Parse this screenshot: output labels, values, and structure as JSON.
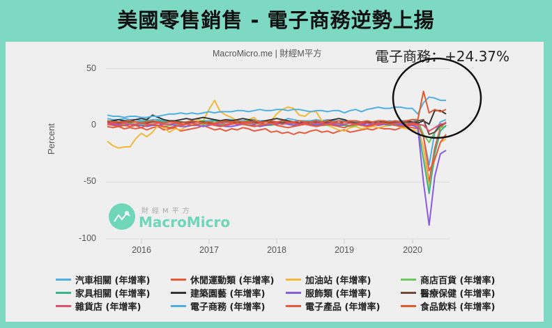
{
  "header": {
    "title": "美國零售銷售 - 電子商務逆勢上揚"
  },
  "chart_header": {
    "credit": "MacroMicro.me | 財經M平方",
    "highlight": "電子商務：+24.37%"
  },
  "logo": {
    "cn": "財經M平方",
    "en": "MacroMicro"
  },
  "axes": {
    "ylabel": "Percent",
    "yticks": [
      "50",
      "0",
      "-50",
      "-100"
    ],
    "xticks": [
      "2016",
      "2017",
      "2018",
      "2019",
      "2020"
    ]
  },
  "legend": [
    {
      "label": "汽車相關 (年增率)",
      "color": "#4fb0e0"
    },
    {
      "label": "休閒運動類 (年增率)",
      "color": "#e8583a"
    },
    {
      "label": "加油站 (年增率)",
      "color": "#f0b93a"
    },
    {
      "label": "商店百貨 (年增率)",
      "color": "#6cc85e"
    },
    {
      "label": "家具相關 (年增率)",
      "color": "#3ab58a"
    },
    {
      "label": "建築園藝 (年增率)",
      "color": "#333333"
    },
    {
      "label": "服飾類 (年增率)",
      "color": "#8a5ae0"
    },
    {
      "label": "醫療保健 (年增率)",
      "color": "#6b4a3a"
    },
    {
      "label": "雜貨店 (年增率)",
      "color": "#e0506e"
    },
    {
      "label": "電子商務 (年增率)",
      "color": "#4fb0e0"
    },
    {
      "label": "電子產品 (年增率)",
      "color": "#e8583a"
    },
    {
      "label": "食品飲料 (年增率)",
      "color": "#e05a30"
    }
  ],
  "chart_data": {
    "type": "line",
    "title": "美國零售銷售 - 電子商務逆勢上揚",
    "xlabel": "",
    "ylabel": "Percent",
    "ylim": [
      -100,
      55
    ],
    "x_start": "2015-07",
    "x_end": "2020-07",
    "frequency": "monthly",
    "xticks": [
      "2016",
      "2017",
      "2018",
      "2019",
      "2020"
    ],
    "yticks": [
      50,
      0,
      -50,
      -100
    ],
    "grid": true,
    "legend_position": "bottom",
    "annotation": "電子商務：+24.37%",
    "series": [
      {
        "name": "汽車相關 (年增率)",
        "color": "#4fb0e0",
        "values": [
          6,
          5,
          5,
          6,
          5,
          5,
          4,
          4,
          5,
          5,
          4,
          4,
          4,
          3,
          3,
          4,
          3,
          4,
          4,
          5,
          4,
          5,
          5,
          4,
          4,
          5,
          5,
          4,
          4,
          4,
          3,
          4,
          6,
          5,
          4,
          4,
          4,
          5,
          4,
          5,
          4,
          4,
          4,
          4,
          3,
          2,
          3,
          2,
          3,
          3,
          4,
          3,
          4,
          4,
          5,
          3,
          -10,
          -35,
          -6,
          3,
          5
        ]
      },
      {
        "name": "休閒運動類 (年增率)",
        "color": "#e8583a",
        "values": [
          -1,
          -2,
          -1,
          -3,
          -2,
          -3,
          -2,
          -4,
          -2,
          -1,
          -4,
          -3,
          -2,
          -5,
          -4,
          -3,
          -2,
          0,
          -2,
          -4,
          -3,
          -5,
          -3,
          -4,
          -2,
          -3,
          -5,
          -4,
          -3,
          -6,
          -5,
          -7,
          -6,
          -8,
          -6,
          -7,
          -5,
          -4,
          -6,
          -5,
          -7,
          -5,
          -4,
          -6,
          -5,
          -4,
          -3,
          -4,
          -2,
          -3,
          -3,
          -4,
          -2,
          -1,
          -2,
          -3,
          -20,
          -50,
          -20,
          -2,
          3
        ]
      },
      {
        "name": "加油站 (年增率)",
        "color": "#f0b93a",
        "values": [
          -14,
          -18,
          -20,
          -19,
          -19,
          -12,
          -7,
          -10,
          -6,
          0,
          -2,
          -6,
          -3,
          -4,
          -1,
          0,
          5,
          4,
          14,
          22,
          12,
          9,
          7,
          4,
          3,
          5,
          7,
          2,
          0,
          4,
          10,
          14,
          16,
          15,
          9,
          8,
          12,
          12,
          4,
          0,
          -2,
          -4,
          -5,
          -2,
          -1,
          -3,
          -2,
          -1,
          -2,
          -1,
          0,
          1,
          -2,
          -3,
          -4,
          -5,
          -20,
          -55,
          -30,
          -15,
          -12
        ]
      },
      {
        "name": "商店百貨 (年增率)",
        "color": "#6cc85e",
        "values": [
          2,
          2,
          1,
          1,
          2,
          1,
          1,
          0,
          1,
          0,
          -1,
          0,
          1,
          0,
          1,
          2,
          1,
          1,
          1,
          2,
          1,
          0,
          1,
          2,
          1,
          1,
          2,
          1,
          0,
          0,
          1,
          2,
          1,
          1,
          2,
          2,
          1,
          1,
          0,
          0,
          1,
          1,
          0,
          -1,
          0,
          1,
          0,
          1,
          0,
          1,
          0,
          1,
          1,
          2,
          1,
          4,
          -8,
          -15,
          -6,
          -2,
          -1
        ]
      },
      {
        "name": "家具相關 (年增率)",
        "color": "#3ab58a",
        "values": [
          4,
          4,
          3,
          4,
          4,
          3,
          3,
          4,
          3,
          4,
          3,
          3,
          4,
          3,
          3,
          4,
          3,
          4,
          3,
          4,
          3,
          3,
          4,
          3,
          3,
          4,
          4,
          3,
          3,
          3,
          2,
          3,
          3,
          2,
          2,
          3,
          2,
          1,
          1,
          1,
          0,
          0,
          0,
          0,
          1,
          0,
          0,
          1,
          1,
          1,
          0,
          1,
          0,
          1,
          1,
          -2,
          -30,
          -60,
          -25,
          -5,
          0
        ]
      },
      {
        "name": "建築園藝 (年增率)",
        "color": "#333333",
        "values": [
          3,
          4,
          5,
          4,
          4,
          5,
          6,
          5,
          9,
          7,
          5,
          4,
          4,
          5,
          6,
          5,
          6,
          7,
          6,
          5,
          4,
          5,
          4,
          5,
          6,
          5,
          4,
          3,
          4,
          5,
          6,
          5,
          4,
          3,
          2,
          3,
          1,
          2,
          3,
          4,
          5,
          6,
          5,
          3,
          2,
          1,
          2,
          3,
          4,
          3,
          1,
          2,
          3,
          4,
          3,
          2,
          4,
          1,
          13,
          13,
          10
        ]
      },
      {
        "name": "服飾類 (年增率)",
        "color": "#8a5ae0",
        "values": [
          1,
          1,
          0,
          0,
          1,
          0,
          0,
          -1,
          0,
          0,
          1,
          1,
          0,
          -1,
          -1,
          0,
          0,
          -1,
          0,
          1,
          0,
          -1,
          -1,
          0,
          1,
          0,
          0,
          -1,
          0,
          1,
          1,
          2,
          1,
          0,
          1,
          2,
          1,
          0,
          1,
          2,
          1,
          0,
          1,
          2,
          1,
          1,
          0,
          1,
          0,
          1,
          1,
          0,
          1,
          0,
          0,
          -2,
          -50,
          -88,
          -45,
          -25,
          -22
        ]
      },
      {
        "name": "醫療保健 (年增率)",
        "color": "#6b4a3a",
        "values": [
          3,
          3,
          2,
          3,
          3,
          3,
          2,
          2,
          3,
          3,
          2,
          3,
          3,
          3,
          2,
          3,
          3,
          3,
          2,
          2,
          3,
          3,
          3,
          2,
          3,
          3,
          3,
          2,
          3,
          3,
          3,
          2,
          3,
          3,
          2,
          3,
          3,
          3,
          2,
          3,
          3,
          2,
          3,
          3,
          2,
          2,
          3,
          3,
          2,
          3,
          2,
          3,
          2,
          3,
          2,
          4,
          5,
          -8,
          -6,
          0,
          2
        ]
      },
      {
        "name": "雜貨店 (年增率)",
        "color": "#e0506e",
        "values": [
          2,
          2,
          1,
          2,
          1,
          1,
          2,
          1,
          1,
          2,
          1,
          1,
          2,
          1,
          1,
          2,
          1,
          2,
          1,
          1,
          2,
          1,
          2,
          1,
          2,
          2,
          1,
          2,
          1,
          2,
          2,
          1,
          2,
          2,
          1,
          2,
          1,
          2,
          2,
          1,
          2,
          2,
          1,
          2,
          1,
          2,
          2,
          1,
          2,
          2,
          1,
          2,
          2,
          1,
          2,
          1,
          0,
          -5,
          -2,
          1,
          2
        ]
      },
      {
        "name": "電子商務 (年增率)",
        "color": "#4fb0e0",
        "values": [
          9,
          8,
          8,
          7,
          8,
          8,
          7,
          7,
          8,
          8,
          9,
          10,
          10,
          11,
          10,
          11,
          10,
          11,
          12,
          11,
          12,
          12,
          12,
          13,
          13,
          12,
          13,
          14,
          13,
          13,
          14,
          14,
          13,
          14,
          14,
          13,
          12,
          13,
          13,
          12,
          13,
          13,
          11,
          13,
          14,
          12,
          14,
          15,
          16,
          15,
          15,
          16,
          16,
          15,
          15,
          10,
          20,
          25,
          24,
          22,
          22
        ]
      },
      {
        "name": "電子產品 (年增率)",
        "color": "#e8583a",
        "values": [
          1,
          0,
          -1,
          0,
          -1,
          0,
          -2,
          0,
          1,
          0,
          -1,
          -2,
          -1,
          0,
          1,
          0,
          1,
          2,
          1,
          0,
          -1,
          0,
          1,
          2,
          1,
          0,
          -1,
          0,
          1,
          2,
          0,
          -1,
          -2,
          -1,
          0,
          1,
          0,
          -1,
          0,
          1,
          0,
          -1,
          -2,
          0,
          1,
          0,
          -1,
          0,
          1,
          2,
          1,
          0,
          -1,
          0,
          1,
          0,
          -10,
          -40,
          -30,
          -15,
          -8
        ]
      },
      {
        "name": "食品飲料 (年增率)",
        "color": "#e05a30",
        "values": [
          4,
          3,
          3,
          3,
          4,
          3,
          2,
          3,
          4,
          3,
          2,
          3,
          3,
          2,
          3,
          4,
          3,
          2,
          3,
          2,
          3,
          4,
          3,
          4,
          3,
          3,
          4,
          3,
          3,
          4,
          3,
          4,
          3,
          3,
          4,
          3,
          3,
          4,
          3,
          4,
          3,
          4,
          3,
          4,
          4,
          3,
          4,
          3,
          4,
          4,
          3,
          4,
          3,
          4,
          5,
          5,
          30,
          11,
          14,
          12,
          14
        ]
      }
    ]
  }
}
